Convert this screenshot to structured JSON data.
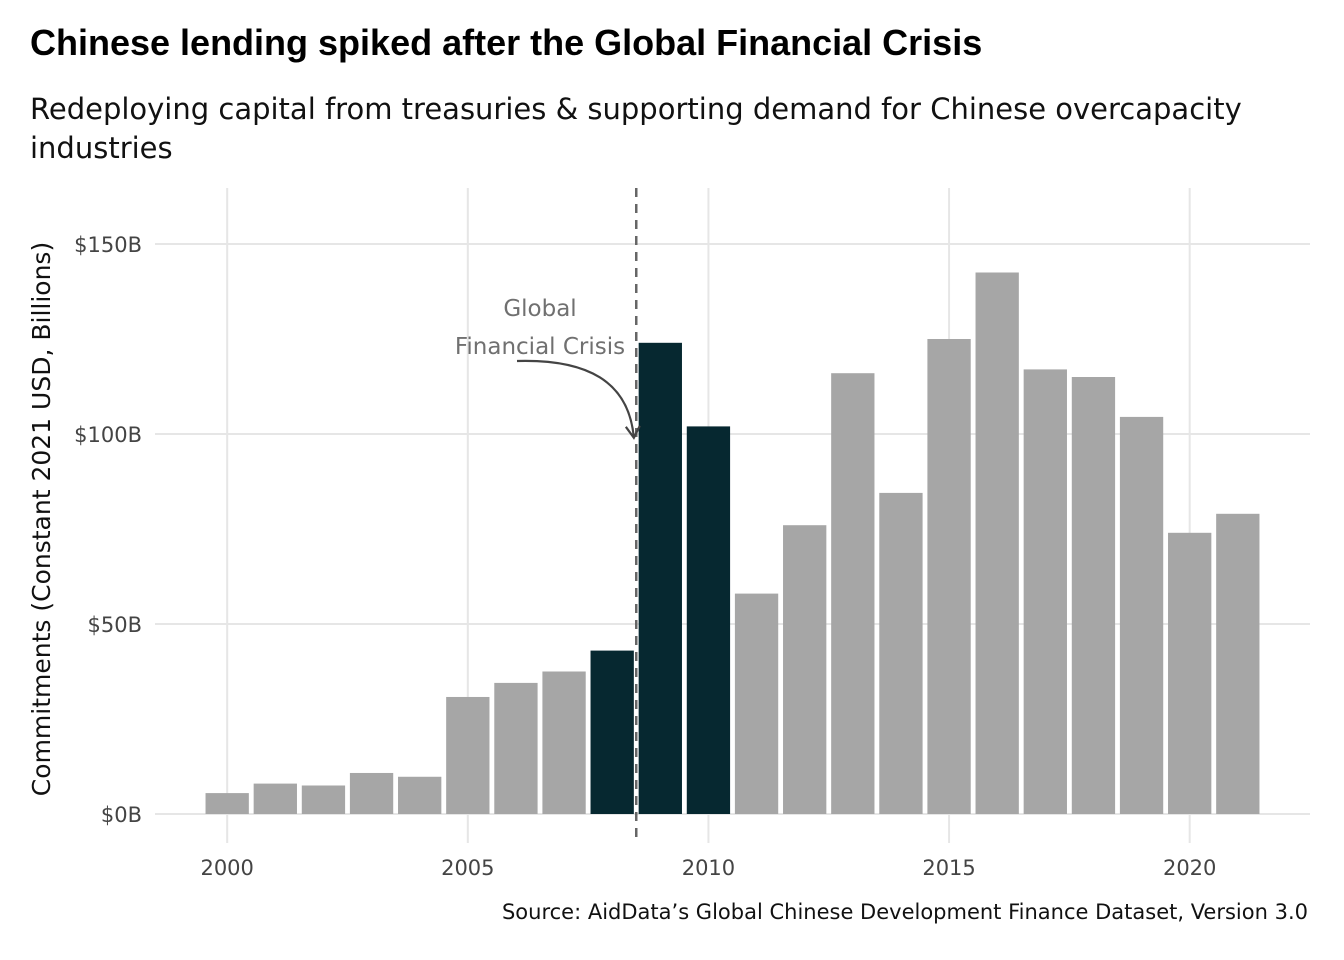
{
  "title": "Chinese lending spiked after the Global Financial Crisis",
  "subtitle": "Redeploying capital from treasuries & supporting demand for Chinese overcapacity industries",
  "caption": "Source: AidData’s Global Chinese Development Finance Dataset, Version 3.0",
  "colors": {
    "highlight": "#062830",
    "default": "#a6a6a6",
    "grid": "#e6e6e6",
    "annotation": "#707070"
  },
  "chart_data": {
    "type": "bar",
    "x": [
      2000,
      2001,
      2002,
      2003,
      2004,
      2005,
      2006,
      2007,
      2008,
      2009,
      2010,
      2011,
      2012,
      2013,
      2014,
      2015,
      2016,
      2017,
      2018,
      2019,
      2020,
      2021
    ],
    "values": [
      5.5,
      8,
      7.5,
      10.8,
      9.8,
      30.8,
      34.5,
      37.5,
      43,
      124,
      102,
      58,
      76,
      116,
      84.5,
      125,
      142.5,
      117,
      115,
      104.5,
      74,
      79
    ],
    "highlighted_years": [
      2008,
      2009,
      2010
    ],
    "ylabel": "Commitments (Constant 2021 USD, Billions)",
    "xlabel": "",
    "ylim": [
      0,
      160
    ],
    "xlim": [
      1998.5,
      2022.5
    ],
    "y_ticks": [
      0,
      50,
      100,
      150
    ],
    "y_tick_labels": [
      "$0B",
      "$50B",
      "$100B",
      "$150B"
    ],
    "x_ticks": [
      2000,
      2005,
      2010,
      2015,
      2020
    ],
    "x_tick_labels": [
      "2000",
      "2005",
      "2010",
      "2015",
      "2020"
    ],
    "grid": true,
    "vline_x": 2008.5,
    "annotation": {
      "lines": [
        "Global",
        "Financial Crisis"
      ],
      "x": 2006.5,
      "y": 131,
      "arrow_to": [
        2008.45,
        99
      ]
    }
  }
}
